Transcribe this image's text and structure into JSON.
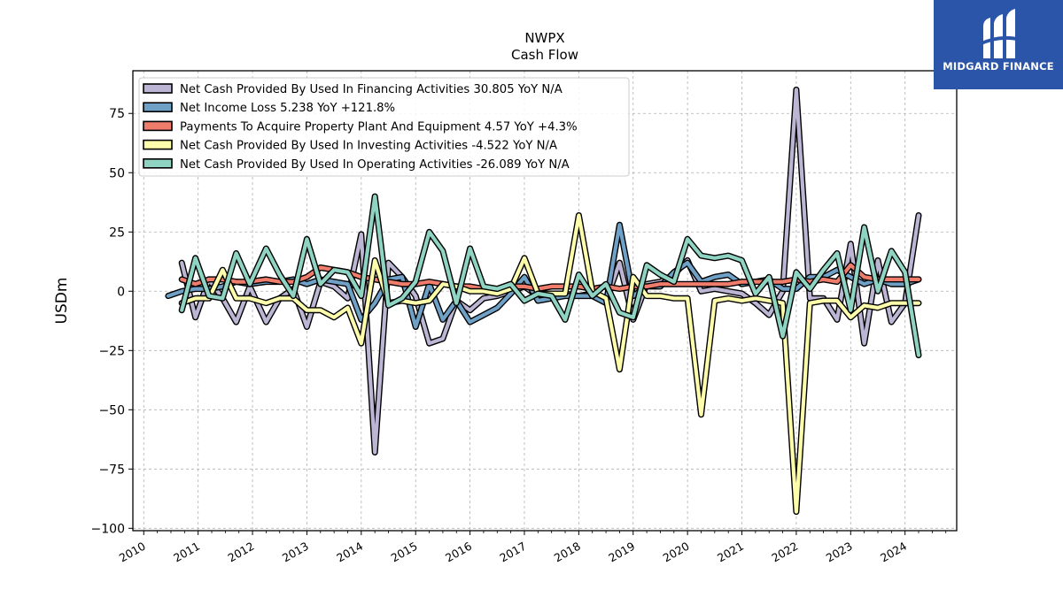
{
  "brand": {
    "name": "MIDGARD FINANCE",
    "bg_color": "#2b55a8",
    "icon": "midgard-logo-icon"
  },
  "chart_data": {
    "type": "line",
    "title": "NWPX",
    "subtitle": "Cash Flow",
    "xlabel": "",
    "ylabel": "USDm",
    "xlim": [
      2009.8,
      2024.95
    ],
    "ylim": [
      -101,
      93
    ],
    "yticks": [
      75,
      50,
      25,
      0,
      -25,
      -50,
      -75,
      -100
    ],
    "ytick_labels": [
      "75",
      "50",
      "25",
      "0",
      "−25",
      "−50",
      "−75",
      "−100"
    ],
    "xticks": [
      2010,
      2011,
      2012,
      2013,
      2014,
      2015,
      2016,
      2017,
      2018,
      2019,
      2020,
      2021,
      2022,
      2023,
      2024
    ],
    "xtick_labels": [
      "2010",
      "2011",
      "2012",
      "2013",
      "2014",
      "2015",
      "2016",
      "2017",
      "2018",
      "2019",
      "2020",
      "2021",
      "2022",
      "2023",
      "2024"
    ],
    "grid": true,
    "legend_position": "top-left",
    "series": [
      {
        "name": "Net Cash Provided By Used In Financing Activities",
        "legend": "Net Cash Provided By Used In Financing Activities  30.805 YoY N/A",
        "color": "#bcb5d4",
        "points": [
          [
            2010.7,
            12
          ],
          [
            2010.95,
            -11
          ],
          [
            2011.2,
            5
          ],
          [
            2011.45,
            -3
          ],
          [
            2011.7,
            -13
          ],
          [
            2011.95,
            2
          ],
          [
            2012.25,
            -13
          ],
          [
            2012.5,
            -3
          ],
          [
            2012.75,
            1
          ],
          [
            2013.0,
            -15
          ],
          [
            2013.25,
            4
          ],
          [
            2013.5,
            2
          ],
          [
            2013.75,
            -3
          ],
          [
            2014.0,
            24
          ],
          [
            2014.25,
            -68
          ],
          [
            2014.5,
            12
          ],
          [
            2014.75,
            6
          ],
          [
            2015.0,
            -2
          ],
          [
            2015.25,
            -22
          ],
          [
            2015.5,
            -20
          ],
          [
            2015.75,
            -4
          ],
          [
            2016.0,
            -8
          ],
          [
            2016.25,
            -3
          ],
          [
            2016.5,
            -2
          ],
          [
            2016.75,
            0
          ],
          [
            2017.0,
            2
          ],
          [
            2017.25,
            -2
          ],
          [
            2017.5,
            -2
          ],
          [
            2017.75,
            -1
          ],
          [
            2018.0,
            -2
          ],
          [
            2018.25,
            -1
          ],
          [
            2018.5,
            -4
          ],
          [
            2018.75,
            12
          ],
          [
            2019.0,
            -12
          ],
          [
            2019.25,
            3
          ],
          [
            2019.5,
            4
          ],
          [
            2019.75,
            7
          ],
          [
            2020.0,
            13
          ],
          [
            2020.25,
            0
          ],
          [
            2020.5,
            1
          ],
          [
            2020.75,
            0
          ],
          [
            2021.0,
            -1
          ],
          [
            2021.25,
            -5
          ],
          [
            2021.5,
            -10
          ],
          [
            2021.75,
            0
          ],
          [
            2022.0,
            85
          ],
          [
            2022.25,
            -3
          ],
          [
            2022.5,
            -3
          ],
          [
            2022.75,
            -12
          ],
          [
            2023.0,
            20
          ],
          [
            2023.25,
            -22
          ],
          [
            2023.5,
            13
          ],
          [
            2023.75,
            -13
          ],
          [
            2024.0,
            -5
          ],
          [
            2024.25,
            32
          ]
        ]
      },
      {
        "name": "Net Income Loss",
        "legend": "Net Income Loss  5.238 YoY +121.8%",
        "color": "#6fa1c7",
        "points": [
          [
            2010.45,
            -2
          ],
          [
            2010.7,
            0
          ],
          [
            2010.95,
            1
          ],
          [
            2011.2,
            1
          ],
          [
            2011.45,
            2
          ],
          [
            2011.7,
            4
          ],
          [
            2011.95,
            3
          ],
          [
            2012.25,
            4
          ],
          [
            2012.5,
            4
          ],
          [
            2012.75,
            5
          ],
          [
            2013.0,
            3
          ],
          [
            2013.25,
            5
          ],
          [
            2013.5,
            4
          ],
          [
            2013.75,
            3
          ],
          [
            2014.0,
            -12
          ],
          [
            2014.25,
            -5
          ],
          [
            2014.5,
            5
          ],
          [
            2014.75,
            6
          ],
          [
            2015.0,
            -15
          ],
          [
            2015.25,
            3
          ],
          [
            2015.5,
            -12
          ],
          [
            2015.75,
            -4
          ],
          [
            2016.0,
            -13
          ],
          [
            2016.25,
            -10
          ],
          [
            2016.5,
            -7
          ],
          [
            2016.75,
            -1
          ],
          [
            2017.0,
            6
          ],
          [
            2017.25,
            -4
          ],
          [
            2017.5,
            -3
          ],
          [
            2017.75,
            -2
          ],
          [
            2018.0,
            -2
          ],
          [
            2018.25,
            -2
          ],
          [
            2018.5,
            -5
          ],
          [
            2018.75,
            28
          ],
          [
            2019.0,
            -2
          ],
          [
            2019.25,
            2
          ],
          [
            2019.5,
            2
          ],
          [
            2019.75,
            8
          ],
          [
            2020.0,
            12
          ],
          [
            2020.25,
            4
          ],
          [
            2020.5,
            6
          ],
          [
            2020.75,
            7
          ],
          [
            2021.0,
            3
          ],
          [
            2021.25,
            4
          ],
          [
            2021.5,
            5
          ],
          [
            2021.75,
            1
          ],
          [
            2022.0,
            1
          ],
          [
            2022.25,
            6
          ],
          [
            2022.5,
            6
          ],
          [
            2022.75,
            9
          ],
          [
            2023.0,
            6
          ],
          [
            2023.25,
            3
          ],
          [
            2023.5,
            5
          ],
          [
            2023.75,
            3
          ],
          [
            2024.0,
            3
          ],
          [
            2024.25,
            5
          ]
        ]
      },
      {
        "name": "Payments To Acquire Property Plant And Equipment",
        "legend": "Payments To Acquire Property Plant And Equipment  4.57 YoY +4.3%",
        "color": "#f07c6c",
        "points": [
          [
            2010.7,
            5
          ],
          [
            2010.95,
            3
          ],
          [
            2011.2,
            5
          ],
          [
            2011.45,
            5
          ],
          [
            2011.7,
            4
          ],
          [
            2011.95,
            4
          ],
          [
            2012.25,
            5
          ],
          [
            2012.5,
            4
          ],
          [
            2012.75,
            4
          ],
          [
            2013.0,
            6
          ],
          [
            2013.25,
            10
          ],
          [
            2013.5,
            9
          ],
          [
            2013.75,
            8
          ],
          [
            2014.0,
            6
          ],
          [
            2014.25,
            5
          ],
          [
            2014.5,
            4
          ],
          [
            2014.75,
            3
          ],
          [
            2015.0,
            3
          ],
          [
            2015.25,
            4
          ],
          [
            2015.5,
            3
          ],
          [
            2015.75,
            2
          ],
          [
            2016.0,
            2
          ],
          [
            2016.25,
            1
          ],
          [
            2016.5,
            1
          ],
          [
            2016.75,
            2
          ],
          [
            2017.0,
            2
          ],
          [
            2017.25,
            1
          ],
          [
            2017.5,
            2
          ],
          [
            2017.75,
            2
          ],
          [
            2018.0,
            2
          ],
          [
            2018.25,
            1
          ],
          [
            2018.5,
            2
          ],
          [
            2018.75,
            1
          ],
          [
            2019.0,
            2
          ],
          [
            2019.25,
            2
          ],
          [
            2019.5,
            3
          ],
          [
            2019.75,
            3
          ],
          [
            2020.0,
            3
          ],
          [
            2020.25,
            3
          ],
          [
            2020.5,
            3
          ],
          [
            2020.75,
            3
          ],
          [
            2021.0,
            4
          ],
          [
            2021.25,
            4
          ],
          [
            2021.5,
            4
          ],
          [
            2021.75,
            4
          ],
          [
            2022.0,
            5
          ],
          [
            2022.25,
            4
          ],
          [
            2022.5,
            5
          ],
          [
            2022.75,
            4
          ],
          [
            2023.0,
            11
          ],
          [
            2023.25,
            6
          ],
          [
            2023.5,
            5
          ],
          [
            2023.75,
            5
          ],
          [
            2024.0,
            5
          ],
          [
            2024.25,
            5
          ]
        ]
      },
      {
        "name": "Net Cash Provided By Used In Investing Activities",
        "legend": "Net Cash Provided By Used In Investing Activities  -4.522 YoY N/A",
        "color": "#fdfdac",
        "points": [
          [
            2010.7,
            -5
          ],
          [
            2010.95,
            -3
          ],
          [
            2011.2,
            -3
          ],
          [
            2011.45,
            9
          ],
          [
            2011.7,
            -3
          ],
          [
            2011.95,
            -3
          ],
          [
            2012.25,
            -5
          ],
          [
            2012.5,
            -3
          ],
          [
            2012.75,
            -3
          ],
          [
            2013.0,
            -8
          ],
          [
            2013.25,
            -8
          ],
          [
            2013.5,
            -11
          ],
          [
            2013.75,
            -7
          ],
          [
            2014.0,
            -22
          ],
          [
            2014.25,
            13
          ],
          [
            2014.5,
            -5
          ],
          [
            2014.75,
            -4
          ],
          [
            2015.0,
            -5
          ],
          [
            2015.25,
            -4
          ],
          [
            2015.5,
            3
          ],
          [
            2015.75,
            2
          ],
          [
            2016.0,
            0
          ],
          [
            2016.25,
            0
          ],
          [
            2016.5,
            -1
          ],
          [
            2016.75,
            1
          ],
          [
            2017.0,
            14
          ],
          [
            2017.25,
            -1
          ],
          [
            2017.5,
            -1
          ],
          [
            2017.75,
            -1
          ],
          [
            2018.0,
            32
          ],
          [
            2018.25,
            0
          ],
          [
            2018.5,
            -3
          ],
          [
            2018.75,
            -33
          ],
          [
            2019.0,
            6
          ],
          [
            2019.25,
            -2
          ],
          [
            2019.5,
            -2
          ],
          [
            2019.75,
            -3
          ],
          [
            2020.0,
            -3
          ],
          [
            2020.25,
            -52
          ],
          [
            2020.5,
            -4
          ],
          [
            2020.75,
            -3
          ],
          [
            2021.0,
            -4
          ],
          [
            2021.25,
            -3
          ],
          [
            2021.5,
            -4
          ],
          [
            2021.75,
            -5
          ],
          [
            2022.0,
            -93
          ],
          [
            2022.25,
            -5
          ],
          [
            2022.5,
            -4
          ],
          [
            2022.75,
            -4
          ],
          [
            2023.0,
            -11
          ],
          [
            2023.25,
            -6
          ],
          [
            2023.5,
            -7
          ],
          [
            2023.75,
            -5
          ],
          [
            2024.0,
            -5
          ],
          [
            2024.25,
            -5
          ]
        ]
      },
      {
        "name": "Net Cash Provided By Used In Operating Activities",
        "legend": "Net Cash Provided By Used In Operating Activities  -26.089 YoY N/A",
        "color": "#8fd3c3",
        "points": [
          [
            2010.7,
            -8
          ],
          [
            2010.95,
            14
          ],
          [
            2011.2,
            -2
          ],
          [
            2011.45,
            -3
          ],
          [
            2011.7,
            16
          ],
          [
            2011.95,
            3
          ],
          [
            2012.25,
            18
          ],
          [
            2012.5,
            7
          ],
          [
            2012.75,
            -2
          ],
          [
            2013.0,
            22
          ],
          [
            2013.25,
            3
          ],
          [
            2013.5,
            9
          ],
          [
            2013.75,
            8
          ],
          [
            2014.0,
            -2
          ],
          [
            2014.25,
            40
          ],
          [
            2014.5,
            -6
          ],
          [
            2014.75,
            -3
          ],
          [
            2015.0,
            4
          ],
          [
            2015.25,
            25
          ],
          [
            2015.5,
            17
          ],
          [
            2015.75,
            -5
          ],
          [
            2016.0,
            18
          ],
          [
            2016.25,
            2
          ],
          [
            2016.5,
            1
          ],
          [
            2016.75,
            3
          ],
          [
            2017.0,
            -4
          ],
          [
            2017.25,
            -1
          ],
          [
            2017.5,
            -2
          ],
          [
            2017.75,
            -12
          ],
          [
            2018.0,
            7
          ],
          [
            2018.25,
            -2
          ],
          [
            2018.5,
            3
          ],
          [
            2018.75,
            -9
          ],
          [
            2019.0,
            -11
          ],
          [
            2019.25,
            11
          ],
          [
            2019.5,
            7
          ],
          [
            2019.75,
            4
          ],
          [
            2020.0,
            22
          ],
          [
            2020.25,
            15
          ],
          [
            2020.5,
            14
          ],
          [
            2020.75,
            15
          ],
          [
            2021.0,
            13
          ],
          [
            2021.25,
            -1
          ],
          [
            2021.5,
            6
          ],
          [
            2021.75,
            -19
          ],
          [
            2022.0,
            8
          ],
          [
            2022.25,
            1
          ],
          [
            2022.5,
            9
          ],
          [
            2022.75,
            16
          ],
          [
            2023.0,
            -8
          ],
          [
            2023.25,
            27
          ],
          [
            2023.5,
            0
          ],
          [
            2023.75,
            17
          ],
          [
            2024.0,
            8
          ],
          [
            2024.25,
            -27
          ]
        ]
      }
    ]
  }
}
